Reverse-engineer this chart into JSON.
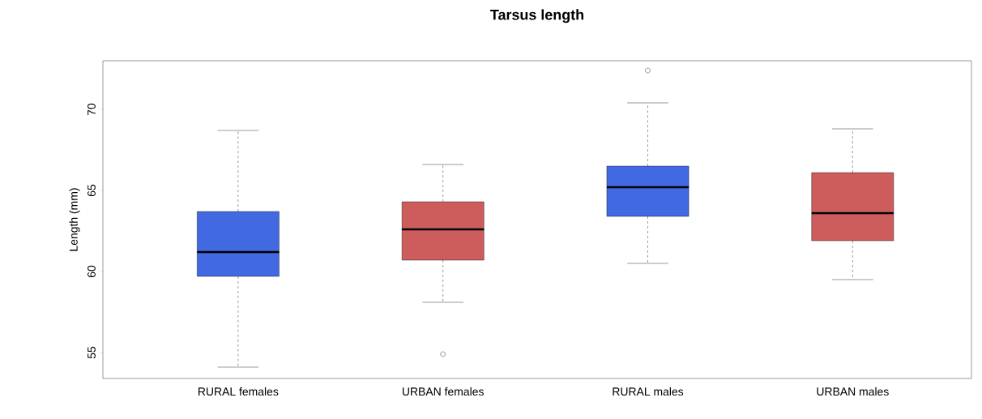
{
  "chart_data": {
    "type": "box",
    "title": "Tarsus length",
    "ylabel": "Length (mm)",
    "categories": [
      "RURAL females",
      "URBAN females",
      "RURAL males",
      "URBAN males"
    ],
    "colors": [
      "#4169e1",
      "#cd5c5c",
      "#4169e1",
      "#cd5c5c"
    ],
    "boxes": [
      {
        "low": 54.1,
        "q1": 59.7,
        "median": 61.2,
        "q3": 63.7,
        "high": 68.7
      },
      {
        "low": 58.1,
        "q1": 60.7,
        "median": 62.6,
        "q3": 64.3,
        "high": 66.6,
        "outliers": [
          54.9
        ]
      },
      {
        "low": 60.5,
        "q1": 63.4,
        "median": 65.2,
        "q3": 66.5,
        "high": 70.4,
        "outliers": [
          72.4
        ]
      },
      {
        "low": 59.5,
        "q1": 61.9,
        "median": 63.6,
        "q3": 66.1,
        "high": 68.8
      }
    ],
    "ylim": [
      53.4,
      73.0
    ],
    "yticks": [
      55,
      60,
      65,
      70
    ]
  }
}
